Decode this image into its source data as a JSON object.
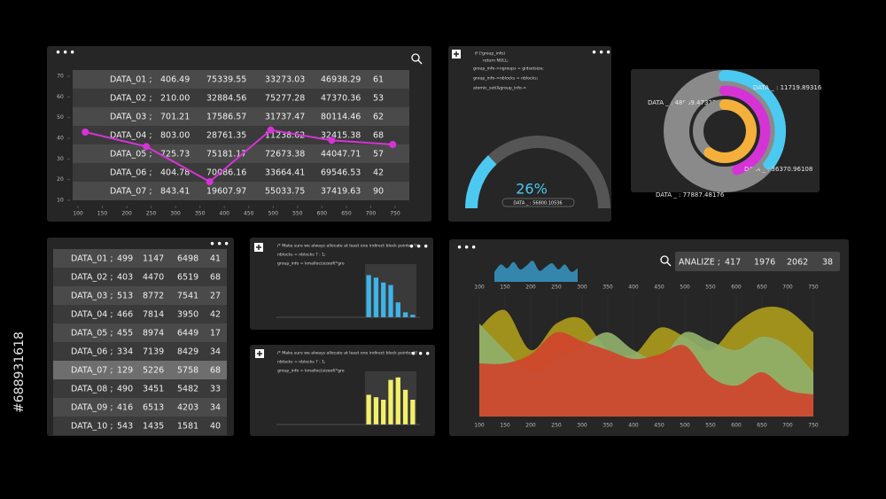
{
  "watermark_id": "#688931618",
  "top_table": {
    "rows": [
      [
        "DATA_01 ;",
        "406.49",
        "75339.55",
        "33273.03",
        "46938.29",
        "61"
      ],
      [
        "DATA_02 ;",
        "210.00",
        "32884.56",
        "75277.28",
        "47370.36",
        "53"
      ],
      [
        "DATA_03 ;",
        "701.21",
        "17586.57",
        "31737.47",
        "80114.46",
        "62"
      ],
      [
        "DATA_04 ;",
        "803.00",
        "28761.35",
        "11238.62",
        "32415.38",
        "68"
      ],
      [
        "DATA_05 ;",
        "725.73",
        "75181.17",
        "72673.38",
        "44047.71",
        "57"
      ],
      [
        "DATA_06 ;",
        "404.78",
        "70086.16",
        "33664.41",
        "69546.53",
        "42"
      ],
      [
        "DATA_07 ;",
        "843.41",
        "19607.97",
        "55033.75",
        "37419.63",
        "90"
      ]
    ],
    "chart": {
      "type": "line",
      "color": "#d633d6",
      "x": [
        115,
        240,
        370,
        495,
        620,
        745
      ],
      "values": [
        43,
        36,
        19,
        44,
        39,
        37
      ],
      "xlim": [
        100,
        750
      ],
      "xticks": [
        100,
        150,
        200,
        250,
        300,
        350,
        400,
        450,
        500,
        550,
        600,
        650,
        700,
        750
      ],
      "ylim": [
        10,
        70
      ],
      "yticks": [
        10,
        20,
        30,
        40,
        50,
        60,
        70
      ]
    }
  },
  "gauge_panel": {
    "code": [
      "if (!group_info)",
      "return NULL;",
      "group_info->ngroups = gidsetsize;",
      "group_info->nblocks = nblocks;",
      "atomic_set(&group_info->"
    ],
    "gauge": {
      "type": "gauge",
      "value": 26,
      "value_label": "26%",
      "range": [
        0,
        100
      ],
      "color": "#4cc9f0",
      "caption": "DATA _ : 56800.10536"
    }
  },
  "rings": {
    "type": "radial",
    "items": [
      {
        "label": "DATA _ : 11719.89316",
        "value": 35,
        "color": "#4cc9f0"
      },
      {
        "label": "DATA _ : 48969.47325",
        "value": 45,
        "color": "#d633d6"
      },
      {
        "label": "DATA _ : 36370.96108",
        "value": 60,
        "color": "#f4b03a"
      },
      {
        "label": "DATA _ : 77887.48176",
        "value": 100,
        "color": "#8a8a8a"
      }
    ]
  },
  "left_table": {
    "rows": [
      [
        "DATA_01 ;",
        "499",
        "1147",
        "6498",
        "41"
      ],
      [
        "DATA_02 ;",
        "403",
        "4470",
        "6519",
        "68"
      ],
      [
        "DATA_03 ;",
        "513",
        "8772",
        "7541",
        "27"
      ],
      [
        "DATA_04 ;",
        "466",
        "7814",
        "3950",
        "42"
      ],
      [
        "DATA_05 ;",
        "455",
        "8974",
        "6449",
        "17"
      ],
      [
        "DATA_06 ;",
        "334",
        "7139",
        "8429",
        "34"
      ],
      [
        "DATA_07 ;",
        "129",
        "5226",
        "5758",
        "68"
      ],
      [
        "DATA_08 ;",
        "490",
        "3451",
        "5482",
        "33"
      ],
      [
        "DATA_09 ;",
        "416",
        "6513",
        "4203",
        "34"
      ],
      [
        "DATA_10 ;",
        "543",
        "1435",
        "1581",
        "40"
      ]
    ]
  },
  "bar_panels": [
    {
      "code": [
        "/* Make sure we always allocate at least one indirect block pointer */",
        "nblocks = nblocks ? : 1;",
        "group_info = kmalloc(sizeof(*gro"
      ],
      "chart": {
        "type": "bar",
        "color": "#3fb4e8",
        "values": [
          85,
          80,
          70,
          65,
          30,
          10,
          5
        ],
        "ylim": [
          0,
          100
        ]
      }
    },
    {
      "code": [
        "/* Make sure we always allocate at least one indirect block pointer */",
        "nblocks = nblocks ? : 1;",
        "group_info = kmalloc(sizeof(*gro"
      ],
      "chart": {
        "type": "bar",
        "color": "#f2f06a",
        "values": [
          60,
          55,
          50,
          90,
          95,
          70,
          50
        ],
        "ylim": [
          0,
          100
        ]
      }
    }
  ],
  "analysis_panel": {
    "analize": {
      "label": "ANALIZE ;",
      "values": [
        "417",
        "1976",
        "2062",
        "38"
      ]
    },
    "mini_chart": {
      "type": "area",
      "color": "#3a9fd0",
      "values": [
        40,
        70,
        55,
        80,
        50,
        65,
        85,
        45,
        60,
        75,
        50,
        70,
        40,
        55
      ],
      "ylim": [
        0,
        100
      ]
    },
    "chart": {
      "type": "area",
      "x": [
        100,
        150,
        200,
        250,
        300,
        350,
        400,
        450,
        500,
        550,
        600,
        650,
        700,
        750
      ],
      "xlim": [
        100,
        750
      ],
      "xticks": [
        100,
        150,
        200,
        250,
        300,
        350,
        400,
        450,
        500,
        550,
        600,
        650,
        700,
        750
      ],
      "ylim": [
        0,
        100
      ],
      "series": [
        {
          "color": "#a99a1a",
          "values": [
            80,
            96,
            60,
            84,
            88,
            60,
            56,
            80,
            72,
            60,
            84,
            98,
            96,
            76
          ]
        },
        {
          "color": "#8fb06a",
          "values": [
            84,
            60,
            40,
            52,
            64,
            76,
            60,
            52,
            76,
            68,
            60,
            72,
            64,
            40
          ]
        },
        {
          "color": "#d0442c",
          "values": [
            48,
            48,
            56,
            76,
            68,
            60,
            52,
            56,
            64,
            36,
            28,
            40,
            24,
            20
          ]
        }
      ]
    }
  }
}
